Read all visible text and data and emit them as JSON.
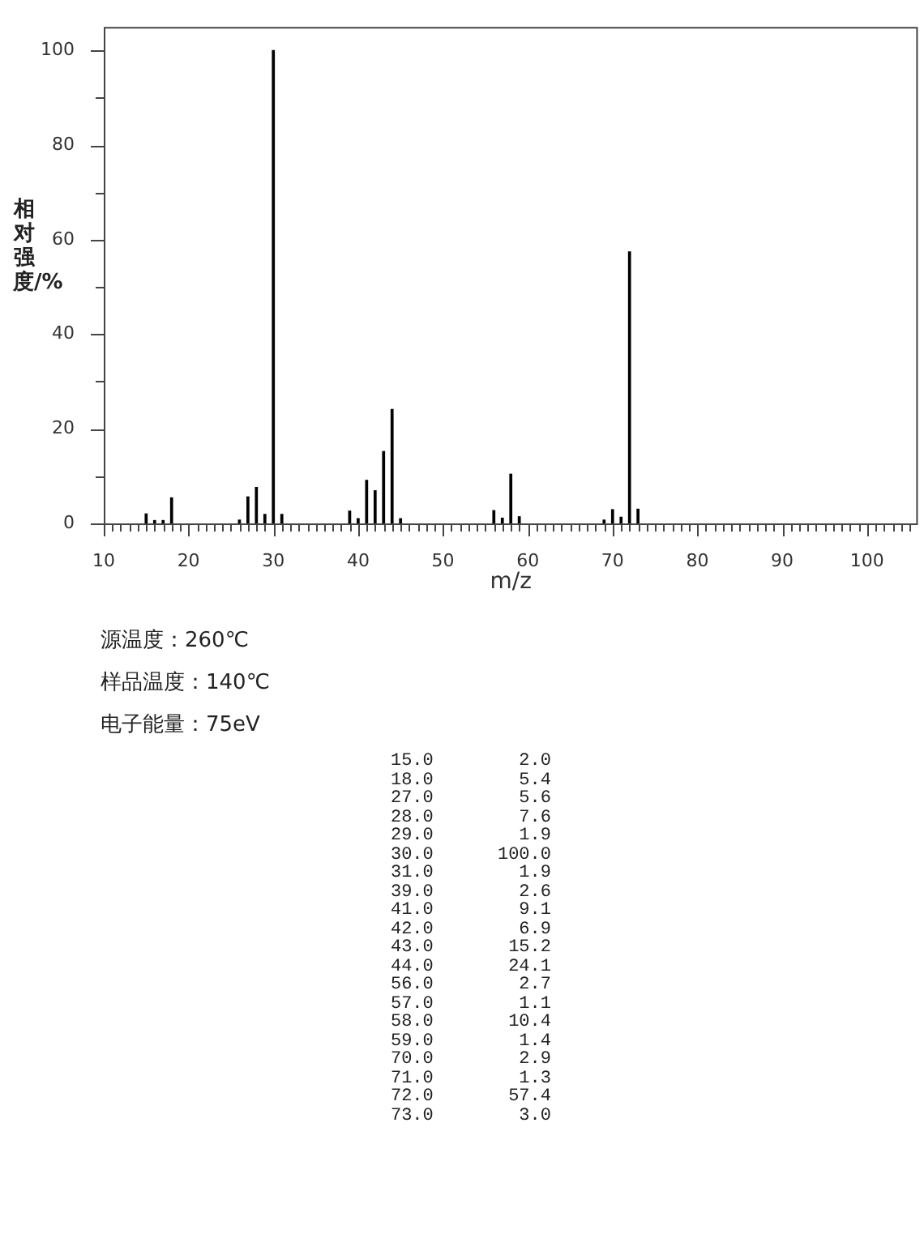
{
  "chart_data": [
    {
      "type": "bar",
      "xlabel": "m/z",
      "ylabel": "相对强度/%",
      "color": "#000000",
      "x": [
        15,
        16,
        17,
        18,
        26,
        27,
        28,
        29,
        30,
        31,
        39,
        40,
        41,
        42,
        43,
        44,
        45,
        56,
        57,
        58,
        59,
        69,
        70,
        71,
        72,
        73
      ],
      "values": [
        2.0,
        0.6,
        0.6,
        5.4,
        0.7,
        5.6,
        7.6,
        1.9,
        100.0,
        1.9,
        2.6,
        1.0,
        9.1,
        6.9,
        15.2,
        24.1,
        1.0,
        2.7,
        1.1,
        10.4,
        1.4,
        0.7,
        2.9,
        1.3,
        57.4,
        3.0
      ],
      "xlim": [
        10,
        106
      ],
      "xticks": [
        10,
        {
          "value": 11,
          "label": null
        },
        {
          "value": 12,
          "label": null
        },
        {
          "value": 13,
          "label": null
        },
        {
          "value": 14,
          "label": null
        },
        {
          "value": 15,
          "label": null
        },
        {
          "value": 16,
          "label": null
        },
        {
          "value": 17,
          "label": null
        },
        {
          "value": 18,
          "label": null
        },
        {
          "value": 19,
          "label": null
        },
        20,
        {
          "value": 21,
          "label": null
        },
        {
          "value": 22,
          "label": null
        },
        {
          "value": 23,
          "label": null
        },
        {
          "value": 24,
          "label": null
        },
        {
          "value": 25,
          "label": null
        },
        {
          "value": 26,
          "label": null
        },
        {
          "value": 27,
          "label": null
        },
        {
          "value": 28,
          "label": null
        },
        {
          "value": 29,
          "label": null
        },
        30,
        {
          "value": 31,
          "label": null
        },
        {
          "value": 32,
          "label": null
        },
        {
          "value": 33,
          "label": null
        },
        {
          "value": 34,
          "label": null
        },
        {
          "value": 35,
          "label": null
        },
        {
          "value": 36,
          "label": null
        },
        {
          "value": 37,
          "label": null
        },
        {
          "value": 38,
          "label": null
        },
        {
          "value": 39,
          "label": null
        },
        40,
        {
          "value": 41,
          "label": null
        },
        {
          "value": 42,
          "label": null
        },
        {
          "value": 43,
          "label": null
        },
        {
          "value": 44,
          "label": null
        },
        {
          "value": 45,
          "label": null
        },
        {
          "value": 46,
          "label": null
        },
        {
          "value": 47,
          "label": null
        },
        {
          "value": 48,
          "label": null
        },
        {
          "value": 49,
          "label": null
        },
        50,
        {
          "value": 51,
          "label": null
        },
        {
          "value": 52,
          "label": null
        },
        {
          "value": 53,
          "label": null
        },
        {
          "value": 54,
          "label": null
        },
        {
          "value": 55,
          "label": null
        },
        {
          "value": 56,
          "label": null
        },
        {
          "value": 57,
          "label": null
        },
        {
          "value": 58,
          "label": null
        },
        {
          "value": 59,
          "label": null
        },
        60,
        {
          "value": 61,
          "label": null
        },
        {
          "value": 62,
          "label": null
        },
        {
          "value": 63,
          "label": null
        },
        {
          "value": 64,
          "label": null
        },
        {
          "value": 65,
          "label": null
        },
        {
          "value": 66,
          "label": null
        },
        {
          "value": 67,
          "label": null
        },
        {
          "value": 68,
          "label": null
        },
        {
          "value": 69,
          "label": null
        },
        70,
        {
          "value": 71,
          "label": null
        },
        {
          "value": 72,
          "label": null
        },
        {
          "value": 73,
          "label": null
        },
        {
          "value": 74,
          "label": null
        },
        {
          "value": 75,
          "label": null
        },
        {
          "value": 76,
          "label": null
        },
        {
          "value": 77,
          "label": null
        },
        {
          "value": 78,
          "label": null
        },
        {
          "value": 79,
          "label": null
        },
        80,
        {
          "value": 81,
          "label": null
        },
        {
          "value": 82,
          "label": null
        },
        {
          "value": 83,
          "label": null
        },
        {
          "value": 84,
          "label": null
        },
        {
          "value": 85,
          "label": null
        },
        {
          "value": 86,
          "label": null
        },
        {
          "value": 87,
          "label": null
        },
        {
          "value": 88,
          "label": null
        },
        {
          "value": 89,
          "label": null
        },
        90,
        {
          "value": 91,
          "label": null
        },
        {
          "value": 92,
          "label": null
        },
        {
          "value": 93,
          "label": null
        },
        {
          "value": 94,
          "label": null
        },
        {
          "value": 95,
          "label": null
        },
        {
          "value": 96,
          "label": null
        },
        {
          "value": 97,
          "label": null
        },
        {
          "value": 98,
          "label": null
        },
        {
          "value": 99,
          "label": null
        },
        100,
        {
          "value": 101,
          "label": null
        },
        {
          "value": 102,
          "label": null
        },
        {
          "value": 103,
          "label": null
        },
        {
          "value": 104,
          "label": null
        },
        {
          "value": 105,
          "label": null
        }
      ],
      "ylim": [
        0,
        105
      ],
      "yticks": [
        0,
        {
          "value": 10,
          "label": null
        },
        20,
        {
          "value": 30,
          "label": null
        },
        40,
        {
          "value": 50,
          "label": null
        },
        60,
        {
          "value": 70,
          "label": null
        },
        80,
        {
          "value": 90,
          "label": null
        },
        100
      ],
      "annotations": [
        "源温度：260℃",
        "样品温度：140℃",
        "电子能量：75eV"
      ]
    },
    {
      "type": "other",
      "annotations": [
        "15.0        2.0",
        "18.0        5.4",
        "27.0        5.6",
        "28.0        7.6",
        "29.0        1.9",
        "30.0      100.0",
        "31.0        1.9",
        "39.0        2.6",
        "41.0        9.1",
        "42.0        6.9",
        "43.0       15.2",
        "44.0       24.1",
        "56.0        2.7",
        "57.0        1.1",
        "58.0       10.4",
        "59.0        1.4",
        "70.0        2.9",
        "71.0        1.3",
        "72.0       57.4",
        "73.0        3.0"
      ]
    }
  ]
}
